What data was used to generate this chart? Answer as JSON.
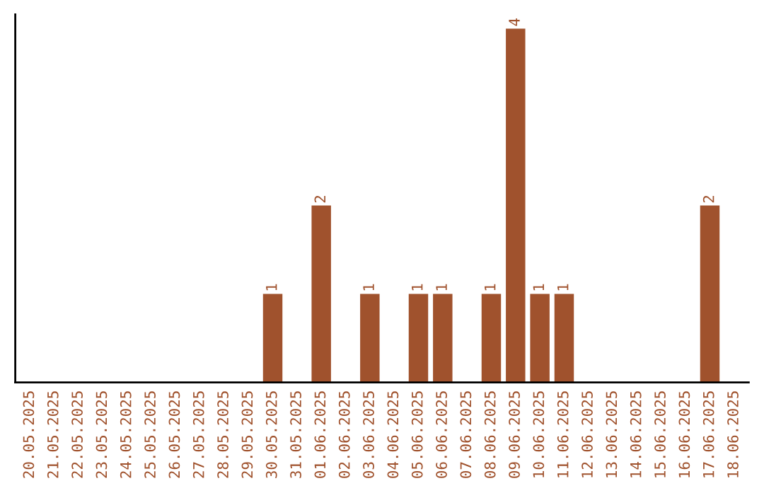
{
  "chart_data": {
    "type": "bar",
    "categories": [
      "20.05.2025",
      "21.05.2025",
      "22.05.2025",
      "23.05.2025",
      "24.05.2025",
      "25.05.2025",
      "26.05.2025",
      "27.05.2025",
      "28.05.2025",
      "29.05.2025",
      "30.05.2025",
      "31.05.2025",
      "01.06.2025",
      "02.06.2025",
      "03.06.2025",
      "04.06.2025",
      "05.06.2025",
      "06.06.2025",
      "07.06.2025",
      "08.06.2025",
      "09.06.2025",
      "10.06.2025",
      "11.06.2025",
      "12.06.2025",
      "13.06.2025",
      "14.06.2025",
      "15.06.2025",
      "16.06.2025",
      "17.06.2025",
      "18.06.2025"
    ],
    "values": [
      0,
      0,
      0,
      0,
      0,
      0,
      0,
      0,
      0,
      0,
      1,
      0,
      2,
      0,
      1,
      0,
      1,
      1,
      0,
      1,
      4,
      1,
      1,
      0,
      0,
      0,
      0,
      0,
      2,
      0
    ],
    "value_labels": [
      null,
      null,
      null,
      null,
      null,
      null,
      null,
      null,
      null,
      null,
      "1",
      null,
      "2",
      null,
      "1",
      null,
      "1",
      "1",
      null,
      "1",
      "4",
      "1",
      "1",
      null,
      null,
      null,
      null,
      null,
      "2",
      null
    ],
    "color": "#a0522d",
    "tick_labels": "x",
    "grid": false,
    "legend": false
  }
}
